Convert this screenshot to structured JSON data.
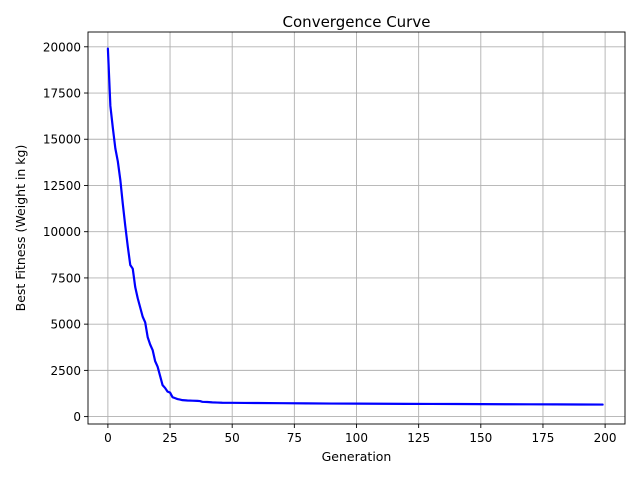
{
  "chart_data": {
    "type": "line",
    "title": "Convergence Curve",
    "xlabel": "Generation",
    "ylabel": "Best Fitness (Weight in kg)",
    "xlim": [
      -8,
      208
    ],
    "ylim": [
      -400,
      20800
    ],
    "xticks": [
      0,
      25,
      50,
      75,
      100,
      125,
      150,
      175,
      200
    ],
    "yticks": [
      0,
      2500,
      5000,
      7500,
      10000,
      12500,
      15000,
      17500,
      20000
    ],
    "grid": true,
    "legend": "none",
    "colors": {
      "line": "#0000ff",
      "grid": "#b0b0b0",
      "frame": "#000000"
    },
    "series": [
      {
        "x": [
          0,
          1,
          2,
          3,
          4,
          5,
          6,
          7,
          8,
          9,
          10,
          11,
          12,
          13,
          14,
          15,
          16,
          17,
          18,
          19,
          20,
          21,
          22,
          23,
          24,
          25,
          26,
          27,
          28,
          29,
          30,
          32,
          34,
          36,
          37,
          38,
          40,
          42,
          44,
          46,
          50,
          55,
          60,
          70,
          80,
          90,
          100,
          110,
          120,
          130,
          140,
          150,
          160,
          170,
          180,
          190,
          199
        ],
        "y": [
          19900,
          16800,
          15600,
          14500,
          13800,
          12800,
          11500,
          10300,
          9200,
          8200,
          8000,
          7000,
          6400,
          5900,
          5400,
          5100,
          4300,
          3900,
          3600,
          3000,
          2700,
          2200,
          1700,
          1550,
          1350,
          1300,
          1050,
          1000,
          950,
          920,
          890,
          870,
          860,
          850,
          840,
          800,
          790,
          770,
          760,
          750,
          745,
          740,
          735,
          725,
          715,
          705,
          700,
          695,
          690,
          685,
          680,
          675,
          670,
          665,
          660,
          655,
          650
        ]
      }
    ]
  }
}
